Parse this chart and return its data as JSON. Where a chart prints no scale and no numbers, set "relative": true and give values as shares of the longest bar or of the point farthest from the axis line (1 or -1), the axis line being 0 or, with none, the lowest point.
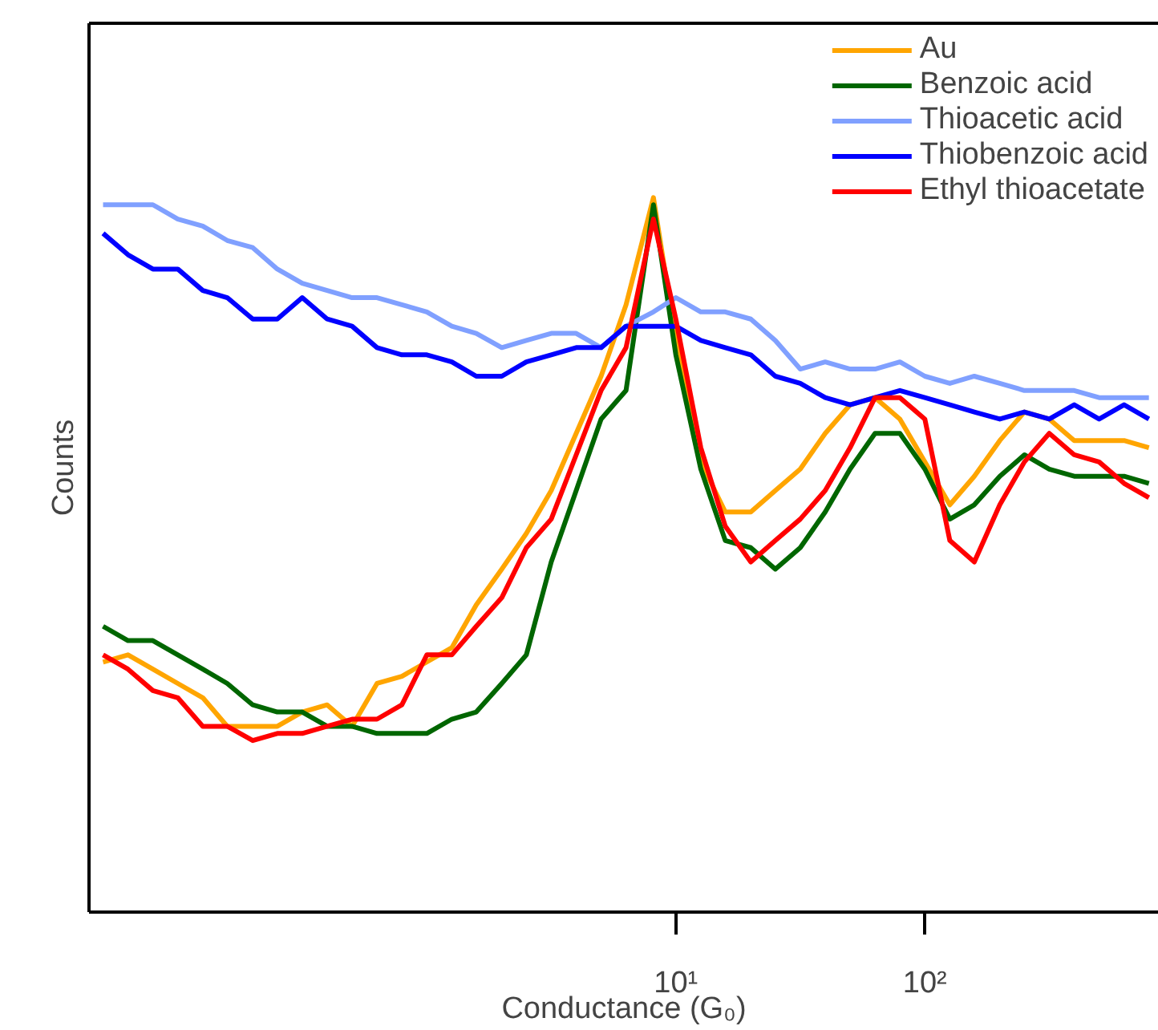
{
  "chart_data": {
    "type": "line",
    "relative": true,
    "xlabel": "Conductance (G₀)",
    "ylabel": "Counts",
    "log": "x",
    "xlim": [
      0.044,
      870
    ],
    "xticks": [
      {
        "value": 10,
        "label": "10¹"
      },
      {
        "value": 100,
        "label": "10²"
      }
    ],
    "x": [
      0.0501,
      0.0631,
      0.0794,
      0.1,
      0.126,
      0.158,
      0.2,
      0.251,
      0.316,
      0.398,
      0.501,
      0.631,
      0.794,
      1,
      1.26,
      1.58,
      2.0,
      2.51,
      3.16,
      3.98,
      5.01,
      6.31,
      8.13,
      10,
      12.6,
      15.8,
      20,
      25.1,
      31.6,
      39.8,
      50.1,
      63.1,
      79.4,
      100,
      126,
      158,
      200,
      251,
      316,
      398,
      501,
      631,
      794
    ],
    "legend": "top right",
    "series": [
      {
        "name": "Au",
        "color": "#ffa500",
        "values": [
          0.35,
          0.36,
          0.34,
          0.32,
          0.3,
          0.26,
          0.26,
          0.26,
          0.28,
          0.29,
          0.26,
          0.32,
          0.33,
          0.35,
          0.37,
          0.43,
          0.48,
          0.53,
          0.59,
          0.67,
          0.75,
          0.85,
          1.0,
          0.8,
          0.63,
          0.56,
          0.56,
          0.59,
          0.62,
          0.67,
          0.71,
          0.72,
          0.69,
          0.63,
          0.57,
          0.61,
          0.66,
          0.7,
          0.69,
          0.66,
          0.66,
          0.66,
          0.65
        ]
      },
      {
        "name": "Benzoic acid",
        "color": "#006600",
        "values": [
          0.4,
          0.38,
          0.38,
          0.36,
          0.34,
          0.32,
          0.29,
          0.28,
          0.28,
          0.26,
          0.26,
          0.25,
          0.25,
          0.25,
          0.27,
          0.28,
          0.32,
          0.36,
          0.49,
          0.59,
          0.69,
          0.73,
          0.99,
          0.78,
          0.62,
          0.52,
          0.51,
          0.48,
          0.51,
          0.56,
          0.62,
          0.67,
          0.67,
          0.62,
          0.55,
          0.57,
          0.61,
          0.64,
          0.62,
          0.61,
          0.61,
          0.61,
          0.6
        ]
      },
      {
        "name": "Thioacetic acid",
        "color": "#80a0ff",
        "values": [
          0.99,
          0.99,
          0.99,
          0.97,
          0.96,
          0.94,
          0.93,
          0.9,
          0.88,
          0.87,
          0.86,
          0.86,
          0.85,
          0.84,
          0.82,
          0.81,
          0.79,
          0.8,
          0.81,
          0.81,
          0.79,
          0.82,
          0.84,
          0.86,
          0.84,
          0.84,
          0.83,
          0.8,
          0.76,
          0.77,
          0.76,
          0.76,
          0.77,
          0.75,
          0.74,
          0.75,
          0.74,
          0.73,
          0.73,
          0.73,
          0.72,
          0.72,
          0.72
        ]
      },
      {
        "name": "Thiobenzoic acid",
        "color": "#0000ff",
        "values": [
          0.95,
          0.92,
          0.9,
          0.9,
          0.87,
          0.86,
          0.83,
          0.83,
          0.86,
          0.83,
          0.82,
          0.79,
          0.78,
          0.78,
          0.77,
          0.75,
          0.75,
          0.77,
          0.78,
          0.79,
          0.79,
          0.82,
          0.82,
          0.82,
          0.8,
          0.79,
          0.78,
          0.75,
          0.74,
          0.72,
          0.71,
          0.72,
          0.73,
          0.72,
          0.71,
          0.7,
          0.69,
          0.7,
          0.69,
          0.71,
          0.69,
          0.71,
          0.69
        ]
      },
      {
        "name": "Ethyl thioacetate",
        "color": "#ff0000",
        "values": [
          0.36,
          0.34,
          0.31,
          0.3,
          0.26,
          0.26,
          0.24,
          0.25,
          0.25,
          0.26,
          0.27,
          0.27,
          0.29,
          0.36,
          0.36,
          0.4,
          0.44,
          0.51,
          0.55,
          0.64,
          0.73,
          0.79,
          0.97,
          0.83,
          0.65,
          0.54,
          0.49,
          0.52,
          0.55,
          0.59,
          0.65,
          0.72,
          0.72,
          0.69,
          0.52,
          0.49,
          0.57,
          0.63,
          0.67,
          0.64,
          0.63,
          0.6,
          0.58
        ]
      }
    ]
  }
}
